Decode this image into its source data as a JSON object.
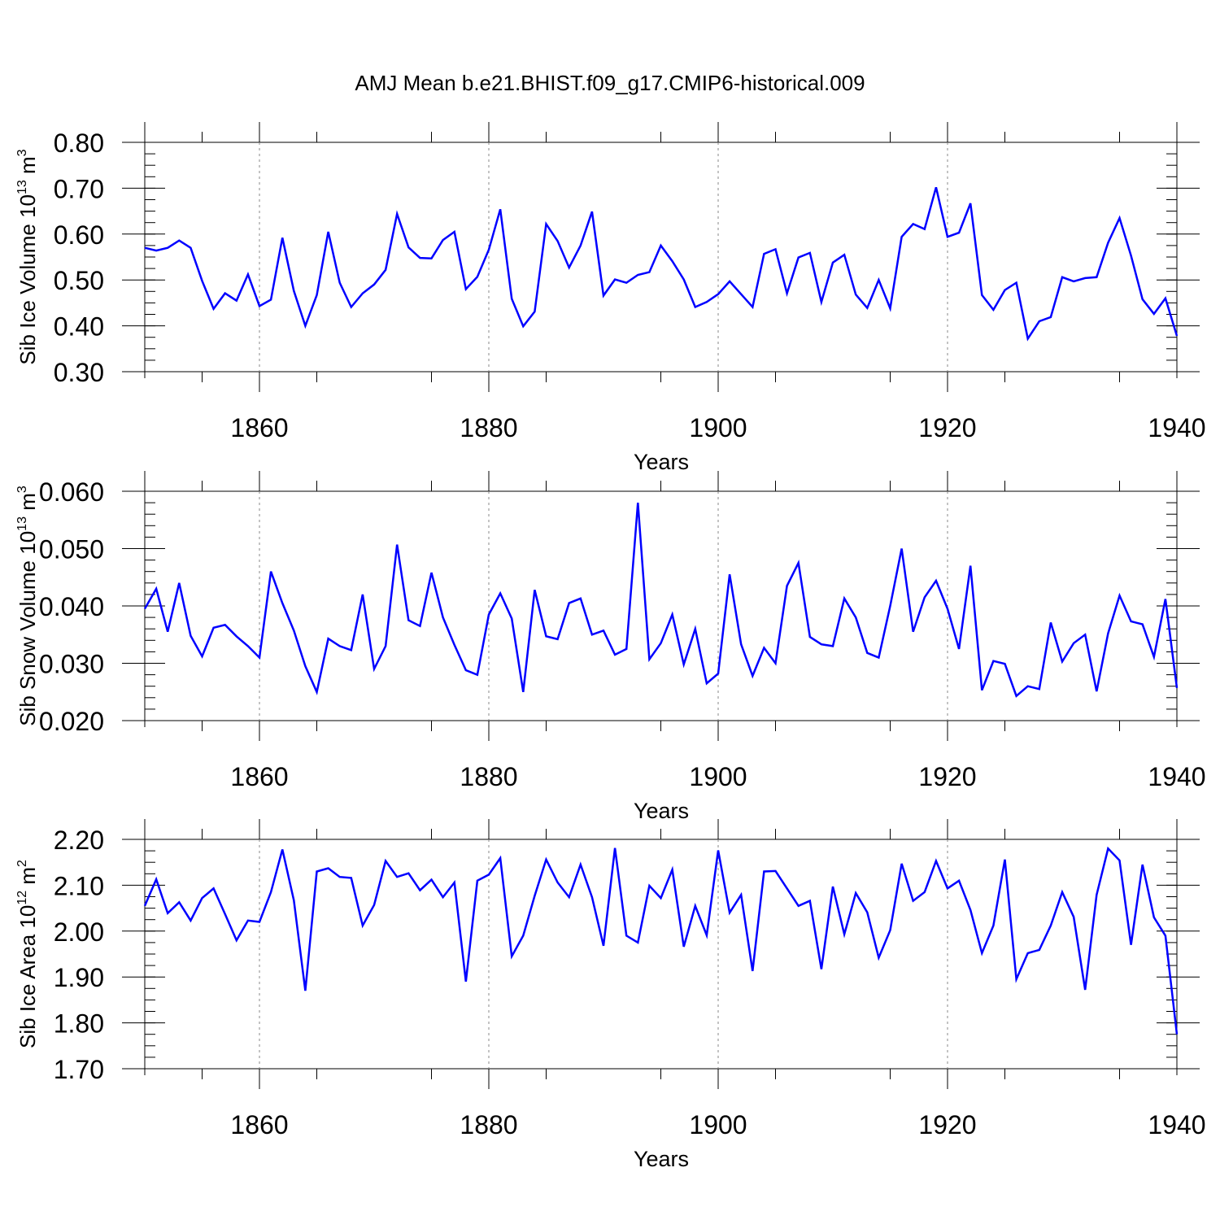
{
  "title": "AMJ Mean b.e21.BHIST.f09_g17.CMIP6-historical.009",
  "line_color": "#0000ff",
  "chart_data": [
    {
      "type": "line",
      "xlabel": "Years",
      "ylabel": {
        "text": "Sib Ice Volume 10",
        "exp": "13",
        "unit": " m",
        "unit_exp": "3"
      },
      "xlim": [
        1850,
        1940
      ],
      "ylim": [
        0.3,
        0.8
      ],
      "xticks": [
        "1860",
        "1880",
        "1900",
        "1920",
        "1940"
      ],
      "yticks": [
        "0.30",
        "0.40",
        "0.50",
        "0.60",
        "0.70",
        "0.80"
      ],
      "x": [
        1850,
        1851,
        1852,
        1853,
        1854,
        1855,
        1856,
        1857,
        1858,
        1859,
        1860,
        1861,
        1862,
        1863,
        1864,
        1865,
        1866,
        1867,
        1868,
        1869,
        1870,
        1871,
        1872,
        1873,
        1874,
        1875,
        1876,
        1877,
        1878,
        1879,
        1880,
        1881,
        1882,
        1883,
        1884,
        1885,
        1886,
        1887,
        1888,
        1889,
        1890,
        1891,
        1892,
        1893,
        1894,
        1895,
        1896,
        1897,
        1898,
        1899,
        1900,
        1901,
        1902,
        1903,
        1904,
        1905,
        1906,
        1907,
        1908,
        1909,
        1910,
        1911,
        1912,
        1913,
        1914,
        1915,
        1916,
        1917,
        1918,
        1919,
        1920,
        1921,
        1922,
        1923,
        1924,
        1925,
        1926,
        1927,
        1928,
        1929,
        1930,
        1931,
        1932,
        1933,
        1934,
        1935,
        1936,
        1937,
        1938,
        1939,
        1940
      ],
      "values": [
        0.57,
        0.564,
        0.57,
        0.586,
        0.57,
        0.498,
        0.437,
        0.471,
        0.455,
        0.512,
        0.443,
        0.457,
        0.592,
        0.476,
        0.4,
        0.467,
        0.605,
        0.494,
        0.441,
        0.471,
        0.49,
        0.522,
        0.644,
        0.571,
        0.548,
        0.547,
        0.587,
        0.605,
        0.48,
        0.507,
        0.566,
        0.654,
        0.459,
        0.399,
        0.431,
        0.622,
        0.585,
        0.527,
        0.575,
        0.649,
        0.466,
        0.501,
        0.494,
        0.511,
        0.517,
        0.575,
        0.541,
        0.501,
        0.441,
        0.452,
        0.469,
        0.497,
        0.469,
        0.441,
        0.557,
        0.567,
        0.471,
        0.549,
        0.559,
        0.452,
        0.538,
        0.555,
        0.468,
        0.439,
        0.5,
        0.438,
        0.594,
        0.622,
        0.611,
        0.702,
        0.594,
        0.603,
        0.667,
        0.467,
        0.435,
        0.478,
        0.494,
        0.372,
        0.41,
        0.419,
        0.506,
        0.497,
        0.504,
        0.506,
        0.581,
        0.635,
        0.553,
        0.458,
        0.426,
        0.46,
        0.378
      ]
    },
    {
      "type": "line",
      "xlabel": "Years",
      "ylabel": {
        "text": "Sib Snow Volume 10",
        "exp": "13",
        "unit": " m",
        "unit_exp": "3"
      },
      "xlim": [
        1850,
        1940
      ],
      "ylim": [
        0.02,
        0.06
      ],
      "xticks": [
        "1860",
        "1880",
        "1900",
        "1920",
        "1940"
      ],
      "yticks": [
        "0.020",
        "0.030",
        "0.040",
        "0.050",
        "0.060"
      ],
      "x": [
        1850,
        1851,
        1852,
        1853,
        1854,
        1855,
        1856,
        1857,
        1858,
        1859,
        1860,
        1861,
        1862,
        1863,
        1864,
        1865,
        1866,
        1867,
        1868,
        1869,
        1870,
        1871,
        1872,
        1873,
        1874,
        1875,
        1876,
        1877,
        1878,
        1879,
        1880,
        1881,
        1882,
        1883,
        1884,
        1885,
        1886,
        1887,
        1888,
        1889,
        1890,
        1891,
        1892,
        1893,
        1894,
        1895,
        1896,
        1897,
        1898,
        1899,
        1900,
        1901,
        1902,
        1903,
        1904,
        1905,
        1906,
        1907,
        1908,
        1909,
        1910,
        1911,
        1912,
        1913,
        1914,
        1915,
        1916,
        1917,
        1918,
        1919,
        1920,
        1921,
        1922,
        1923,
        1924,
        1925,
        1926,
        1927,
        1928,
        1929,
        1930,
        1931,
        1932,
        1933,
        1934,
        1935,
        1936,
        1937,
        1938,
        1939,
        1940
      ],
      "values": [
        0.0395,
        0.043,
        0.0355,
        0.044,
        0.0348,
        0.0312,
        0.0362,
        0.0367,
        0.0347,
        0.033,
        0.031,
        0.046,
        0.0405,
        0.0357,
        0.0295,
        0.025,
        0.0343,
        0.033,
        0.0323,
        0.042,
        0.029,
        0.033,
        0.0507,
        0.0375,
        0.0365,
        0.0458,
        0.038,
        0.0332,
        0.0288,
        0.028,
        0.0385,
        0.0422,
        0.0378,
        0.025,
        0.0428,
        0.0347,
        0.0342,
        0.0405,
        0.0413,
        0.035,
        0.0357,
        0.0315,
        0.0325,
        0.058,
        0.0307,
        0.0335,
        0.0385,
        0.0298,
        0.036,
        0.0265,
        0.0282,
        0.0455,
        0.0333,
        0.0278,
        0.0327,
        0.03,
        0.0435,
        0.0475,
        0.0346,
        0.0333,
        0.033,
        0.0413,
        0.038,
        0.0318,
        0.031,
        0.04,
        0.05,
        0.0355,
        0.0415,
        0.0444,
        0.0395,
        0.0325,
        0.047,
        0.0253,
        0.0304,
        0.0299,
        0.0243,
        0.026,
        0.0255,
        0.0371,
        0.0303,
        0.0335,
        0.035,
        0.0251,
        0.0352,
        0.0418,
        0.0373,
        0.0368,
        0.0311,
        0.0412,
        0.0257
      ]
    },
    {
      "type": "line",
      "xlabel": "Years",
      "ylabel": {
        "text": "Sib Ice Area 10",
        "exp": "12",
        "unit": " m",
        "unit_exp": "2"
      },
      "xlim": [
        1850,
        1940
      ],
      "ylim": [
        1.7,
        2.2
      ],
      "xticks": [
        "1860",
        "1880",
        "1900",
        "1920",
        "1940"
      ],
      "yticks": [
        "1.70",
        "1.80",
        "1.90",
        "2.00",
        "2.10",
        "2.20"
      ],
      "x": [
        1850,
        1851,
        1852,
        1853,
        1854,
        1855,
        1856,
        1857,
        1858,
        1859,
        1860,
        1861,
        1862,
        1863,
        1864,
        1865,
        1866,
        1867,
        1868,
        1869,
        1870,
        1871,
        1872,
        1873,
        1874,
        1875,
        1876,
        1877,
        1878,
        1879,
        1880,
        1881,
        1882,
        1883,
        1884,
        1885,
        1886,
        1887,
        1888,
        1889,
        1890,
        1891,
        1892,
        1893,
        1894,
        1895,
        1896,
        1897,
        1898,
        1899,
        1900,
        1901,
        1902,
        1903,
        1904,
        1905,
        1906,
        1907,
        1908,
        1909,
        1910,
        1911,
        1912,
        1913,
        1914,
        1915,
        1916,
        1917,
        1918,
        1919,
        1920,
        1921,
        1922,
        1923,
        1924,
        1925,
        1926,
        1927,
        1928,
        1929,
        1930,
        1931,
        1932,
        1933,
        1934,
        1935,
        1936,
        1937,
        1938,
        1939,
        1940
      ],
      "values": [
        2.055,
        2.113,
        2.039,
        2.063,
        2.023,
        2.072,
        2.093,
        2.037,
        1.98,
        2.023,
        2.02,
        2.085,
        2.178,
        2.067,
        1.87,
        2.13,
        2.137,
        2.118,
        2.116,
        2.012,
        2.057,
        2.153,
        2.118,
        2.126,
        2.089,
        2.112,
        2.074,
        2.106,
        1.89,
        2.11,
        2.123,
        2.159,
        1.945,
        1.99,
        2.077,
        2.156,
        2.106,
        2.074,
        2.145,
        2.074,
        1.968,
        2.181,
        1.99,
        1.975,
        2.099,
        2.072,
        2.134,
        1.966,
        2.055,
        1.991,
        2.176,
        2.04,
        2.079,
        1.913,
        2.13,
        2.131,
        2.093,
        2.055,
        2.066,
        1.917,
        2.097,
        1.993,
        2.083,
        2.041,
        1.942,
        2.002,
        2.147,
        2.066,
        2.085,
        2.153,
        2.093,
        2.11,
        2.046,
        1.952,
        2.012,
        2.156,
        1.895,
        1.952,
        1.959,
        2.012,
        2.085,
        2.031,
        1.872,
        2.079,
        2.18,
        2.154,
        1.97,
        2.145,
        2.03,
        1.99,
        1.775
      ]
    }
  ]
}
